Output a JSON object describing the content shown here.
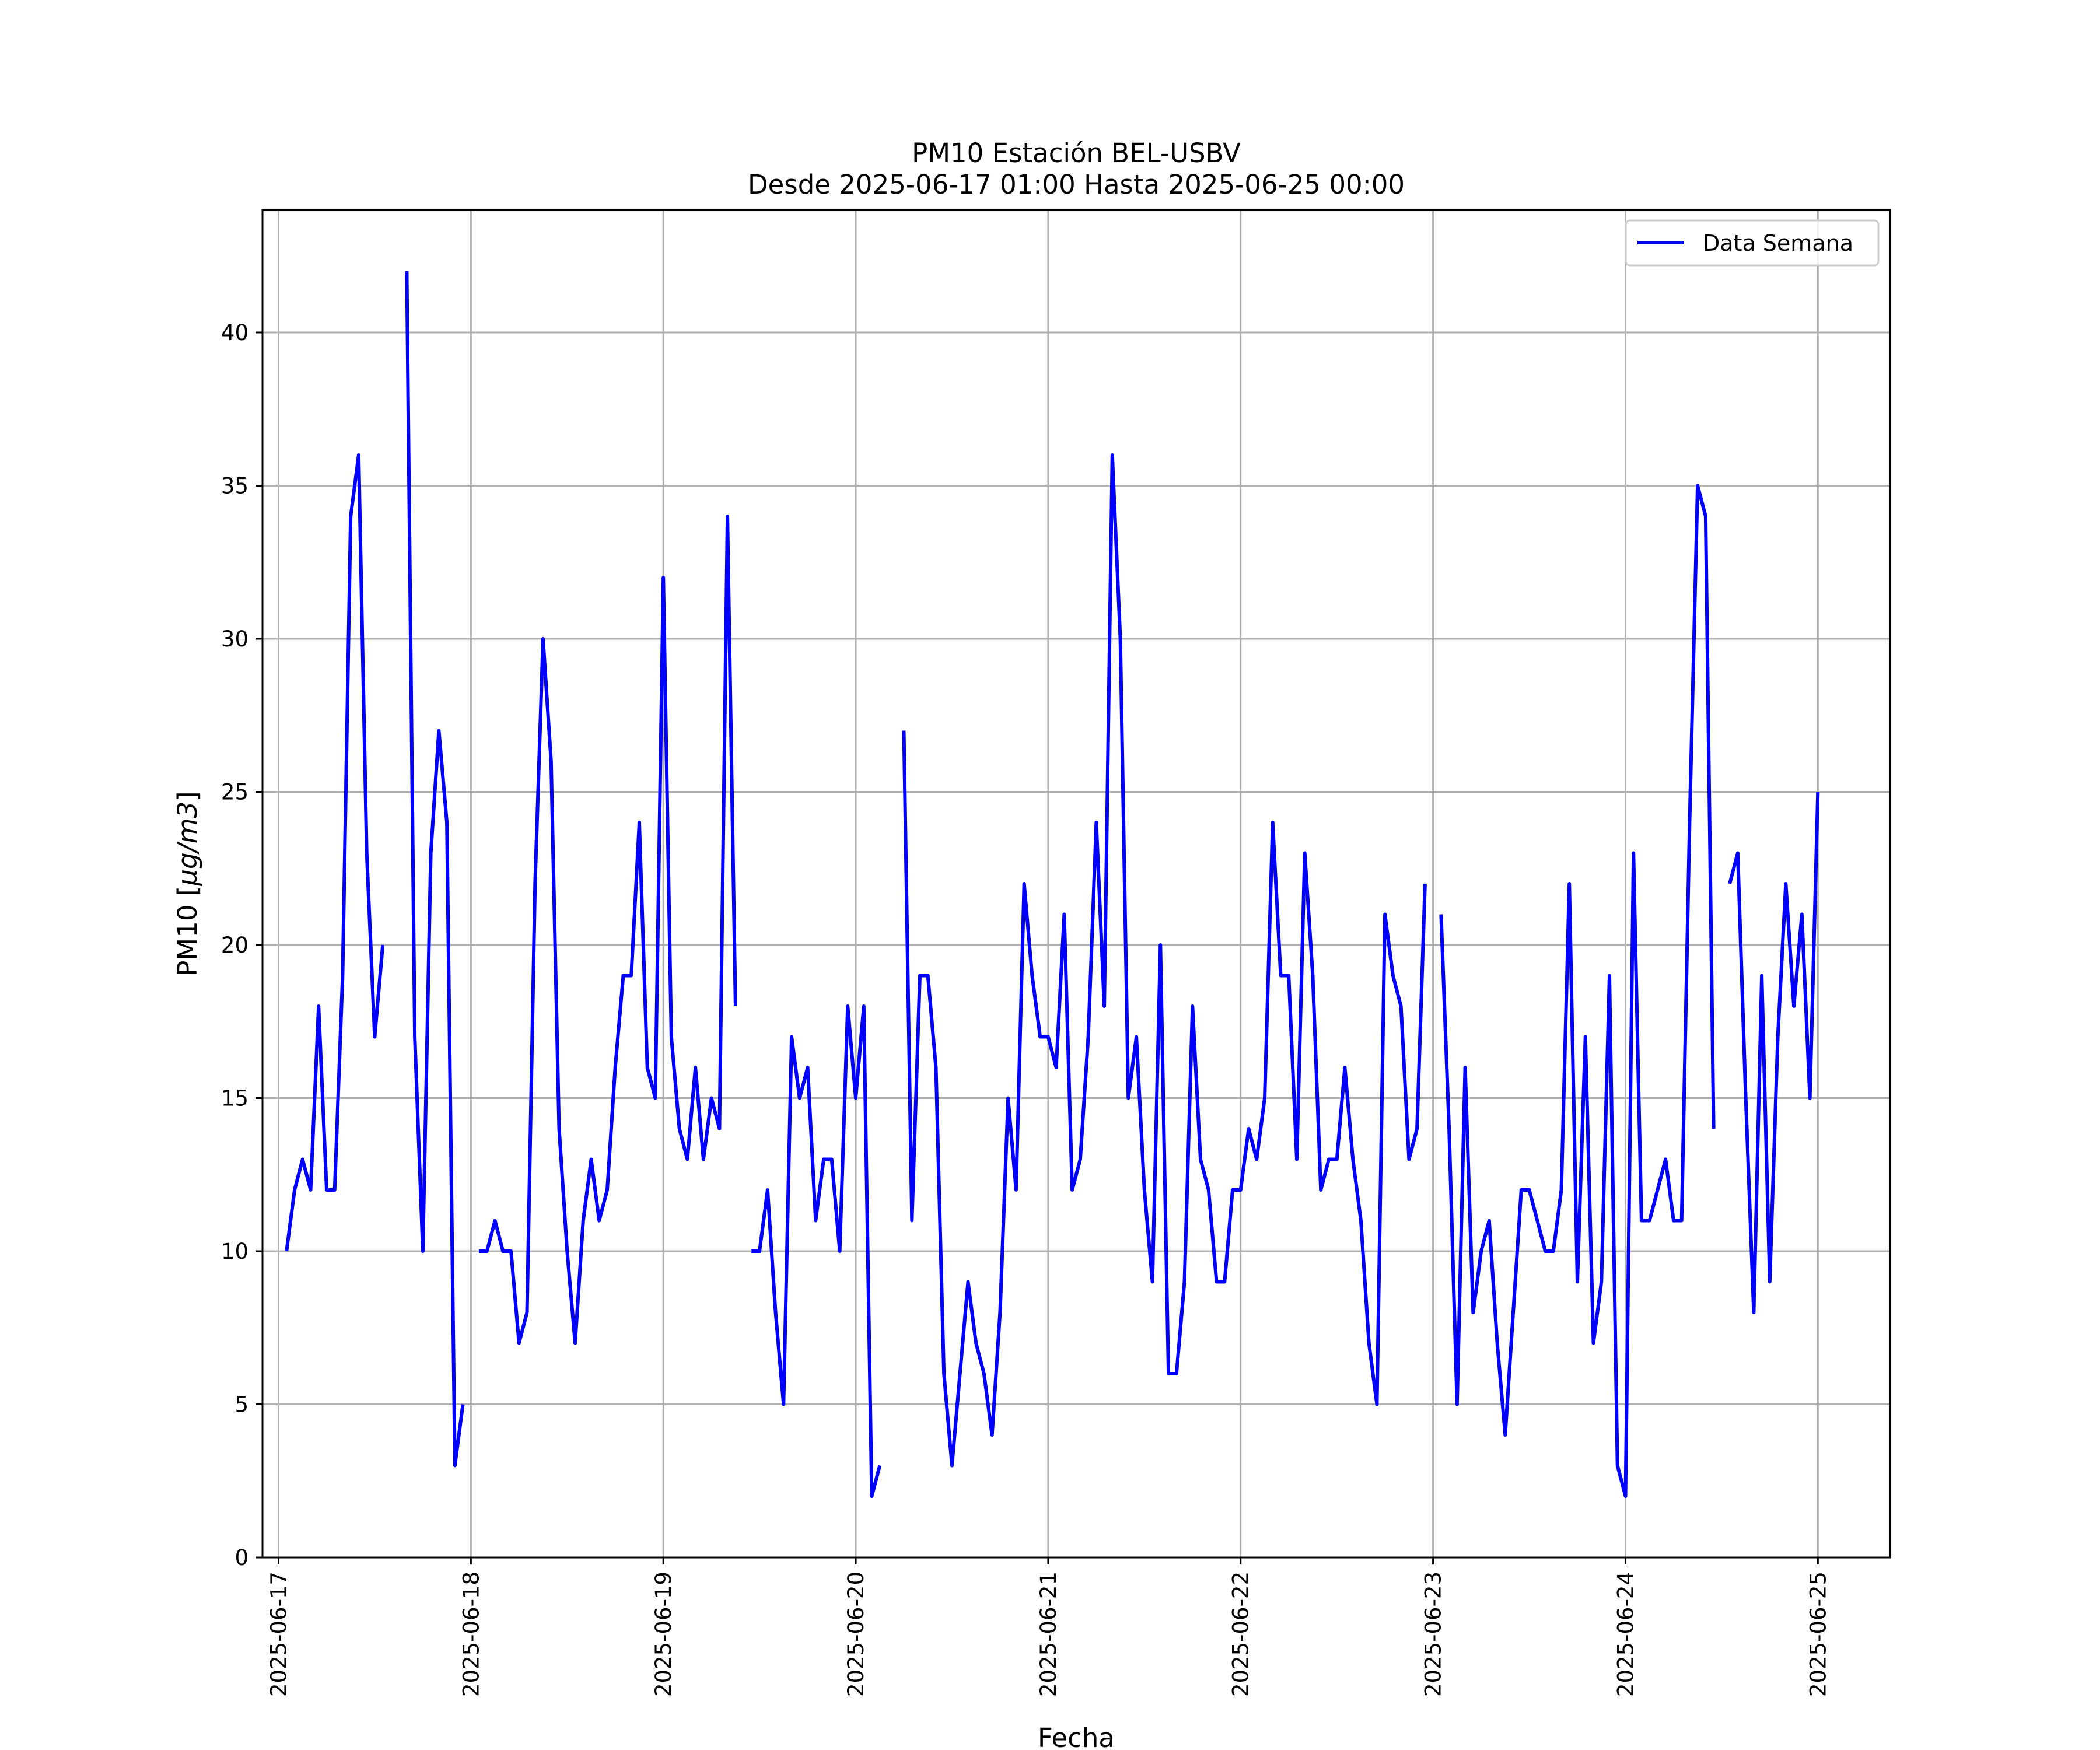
{
  "chart_data": {
    "type": "line",
    "title": "PM10 Estación BEL-USBV",
    "subtitle": "Desde 2025-06-17 01:00 Hasta 2025-06-25 00:00",
    "xlabel": "Fecha",
    "ylabel_prefix": "PM10 [",
    "ylabel_unit": "μg/m3",
    "ylabel_suffix": "]",
    "grid": true,
    "legend_position": "top-right",
    "xlim": [
      "2025-06-16 22:00",
      "2025-06-25 09:00"
    ],
    "ylim": [
      0,
      44
    ],
    "x_ticks": [
      "2025-06-17",
      "2025-06-18",
      "2025-06-19",
      "2025-06-20",
      "2025-06-21",
      "2025-06-22",
      "2025-06-23",
      "2025-06-24",
      "2025-06-25"
    ],
    "y_ticks": [
      0,
      5,
      10,
      15,
      20,
      25,
      30,
      35,
      40
    ],
    "series": [
      {
        "name": "Data Semana",
        "color": "#0000ff",
        "x": [
          "2025-06-17 01:00",
          "2025-06-17 02:00",
          "2025-06-17 03:00",
          "2025-06-17 04:00",
          "2025-06-17 05:00",
          "2025-06-17 06:00",
          "2025-06-17 07:00",
          "2025-06-17 08:00",
          "2025-06-17 09:00",
          "2025-06-17 10:00",
          "2025-06-17 11:00",
          "2025-06-17 12:00",
          "2025-06-17 13:00",
          "2025-06-17 14:00",
          "2025-06-17 15:00",
          "2025-06-17 16:00",
          "2025-06-17 17:00",
          "2025-06-17 18:00",
          "2025-06-17 19:00",
          "2025-06-17 20:00",
          "2025-06-17 21:00",
          "2025-06-17 22:00",
          "2025-06-17 23:00",
          "2025-06-18 00:00",
          "2025-06-18 01:00",
          "2025-06-18 02:00",
          "2025-06-18 03:00",
          "2025-06-18 04:00",
          "2025-06-18 05:00",
          "2025-06-18 06:00",
          "2025-06-18 07:00",
          "2025-06-18 08:00",
          "2025-06-18 09:00",
          "2025-06-18 10:00",
          "2025-06-18 11:00",
          "2025-06-18 12:00",
          "2025-06-18 13:00",
          "2025-06-18 14:00",
          "2025-06-18 15:00",
          "2025-06-18 16:00",
          "2025-06-18 17:00",
          "2025-06-18 18:00",
          "2025-06-18 19:00",
          "2025-06-18 20:00",
          "2025-06-18 21:00",
          "2025-06-18 22:00",
          "2025-06-18 23:00",
          "2025-06-19 00:00",
          "2025-06-19 01:00",
          "2025-06-19 02:00",
          "2025-06-19 03:00",
          "2025-06-19 04:00",
          "2025-06-19 05:00",
          "2025-06-19 06:00",
          "2025-06-19 07:00",
          "2025-06-19 08:00",
          "2025-06-19 09:00",
          "2025-06-19 10:00",
          "2025-06-19 11:00",
          "2025-06-19 12:00",
          "2025-06-19 13:00",
          "2025-06-19 14:00",
          "2025-06-19 15:00",
          "2025-06-19 16:00",
          "2025-06-19 17:00",
          "2025-06-19 18:00",
          "2025-06-19 19:00",
          "2025-06-19 20:00",
          "2025-06-19 21:00",
          "2025-06-19 22:00",
          "2025-06-19 23:00",
          "2025-06-20 00:00",
          "2025-06-20 01:00",
          "2025-06-20 02:00",
          "2025-06-20 03:00",
          "2025-06-20 04:00",
          "2025-06-20 05:00",
          "2025-06-20 06:00",
          "2025-06-20 07:00",
          "2025-06-20 08:00",
          "2025-06-20 09:00",
          "2025-06-20 10:00",
          "2025-06-20 11:00",
          "2025-06-20 12:00",
          "2025-06-20 13:00",
          "2025-06-20 14:00",
          "2025-06-20 15:00",
          "2025-06-20 16:00",
          "2025-06-20 17:00",
          "2025-06-20 18:00",
          "2025-06-20 19:00",
          "2025-06-20 20:00",
          "2025-06-20 21:00",
          "2025-06-20 22:00",
          "2025-06-20 23:00",
          "2025-06-21 00:00",
          "2025-06-21 01:00",
          "2025-06-21 02:00",
          "2025-06-21 03:00",
          "2025-06-21 04:00",
          "2025-06-21 05:00",
          "2025-06-21 06:00",
          "2025-06-21 07:00",
          "2025-06-21 08:00",
          "2025-06-21 09:00",
          "2025-06-21 10:00",
          "2025-06-21 11:00",
          "2025-06-21 12:00",
          "2025-06-21 13:00",
          "2025-06-21 14:00",
          "2025-06-21 15:00",
          "2025-06-21 16:00",
          "2025-06-21 17:00",
          "2025-06-21 18:00",
          "2025-06-21 19:00",
          "2025-06-21 20:00",
          "2025-06-21 21:00",
          "2025-06-21 22:00",
          "2025-06-21 23:00",
          "2025-06-22 00:00",
          "2025-06-22 01:00",
          "2025-06-22 02:00",
          "2025-06-22 03:00",
          "2025-06-22 04:00",
          "2025-06-22 05:00",
          "2025-06-22 06:00",
          "2025-06-22 07:00",
          "2025-06-22 08:00",
          "2025-06-22 09:00",
          "2025-06-22 10:00",
          "2025-06-22 11:00",
          "2025-06-22 12:00",
          "2025-06-22 13:00",
          "2025-06-22 14:00",
          "2025-06-22 15:00",
          "2025-06-22 16:00",
          "2025-06-22 17:00",
          "2025-06-22 18:00",
          "2025-06-22 19:00",
          "2025-06-22 20:00",
          "2025-06-22 21:00",
          "2025-06-22 22:00",
          "2025-06-22 23:00",
          "2025-06-23 00:00",
          "2025-06-23 01:00",
          "2025-06-23 02:00",
          "2025-06-23 03:00",
          "2025-06-23 04:00",
          "2025-06-23 05:00",
          "2025-06-23 06:00",
          "2025-06-23 07:00",
          "2025-06-23 08:00",
          "2025-06-23 09:00",
          "2025-06-23 10:00",
          "2025-06-23 11:00",
          "2025-06-23 12:00",
          "2025-06-23 13:00",
          "2025-06-23 14:00",
          "2025-06-23 15:00",
          "2025-06-23 16:00",
          "2025-06-23 17:00",
          "2025-06-23 18:00",
          "2025-06-23 19:00",
          "2025-06-23 20:00",
          "2025-06-23 21:00",
          "2025-06-23 22:00",
          "2025-06-23 23:00",
          "2025-06-24 00:00",
          "2025-06-24 01:00",
          "2025-06-24 02:00",
          "2025-06-24 03:00",
          "2025-06-24 04:00",
          "2025-06-24 05:00",
          "2025-06-24 06:00",
          "2025-06-24 07:00",
          "2025-06-24 08:00",
          "2025-06-24 09:00",
          "2025-06-24 10:00",
          "2025-06-24 11:00",
          "2025-06-24 12:00",
          "2025-06-24 13:00",
          "2025-06-24 14:00",
          "2025-06-24 15:00",
          "2025-06-24 16:00",
          "2025-06-24 17:00",
          "2025-06-24 18:00",
          "2025-06-24 19:00",
          "2025-06-24 20:00",
          "2025-06-24 21:00",
          "2025-06-24 22:00",
          "2025-06-24 23:00",
          "2025-06-25 00:00"
        ],
        "y": [
          10,
          12,
          13,
          12,
          18,
          12,
          12,
          19,
          34,
          36,
          23,
          17,
          20,
          null,
          null,
          42,
          17,
          10,
          23,
          27,
          24,
          3,
          5,
          null,
          10,
          10,
          11,
          10,
          10,
          7,
          8,
          22,
          30,
          26,
          14,
          10,
          7,
          11,
          13,
          11,
          12,
          16,
          19,
          19,
          24,
          16,
          15,
          32,
          17,
          14,
          13,
          16,
          13,
          15,
          14,
          34,
          18,
          null,
          10,
          10,
          12,
          8,
          5,
          17,
          15,
          16,
          11,
          13,
          13,
          10,
          18,
          15,
          18,
          2,
          3,
          null,
          null,
          27,
          11,
          19,
          19,
          16,
          6,
          3,
          6,
          9,
          7,
          6,
          4,
          8,
          15,
          12,
          22,
          19,
          17,
          17,
          16,
          21,
          12,
          13,
          17,
          24,
          18,
          36,
          30,
          15,
          17,
          12,
          9,
          20,
          6,
          6,
          9,
          18,
          13,
          12,
          9,
          9,
          12,
          12,
          14,
          13,
          15,
          24,
          19,
          19,
          13,
          23,
          19,
          12,
          13,
          13,
          16,
          13,
          11,
          7,
          5,
          21,
          19,
          18,
          13,
          14,
          22,
          null,
          21,
          14,
          5,
          16,
          8,
          10,
          11,
          7,
          4,
          8,
          12,
          12,
          11,
          10,
          10,
          12,
          22,
          9,
          17,
          7,
          9,
          19,
          3,
          2,
          23,
          11,
          11,
          12,
          13,
          11,
          11,
          24,
          35,
          34,
          14,
          null,
          22,
          23,
          15,
          8,
          19,
          9,
          17,
          22,
          18,
          21,
          15,
          25
        ]
      }
    ]
  }
}
